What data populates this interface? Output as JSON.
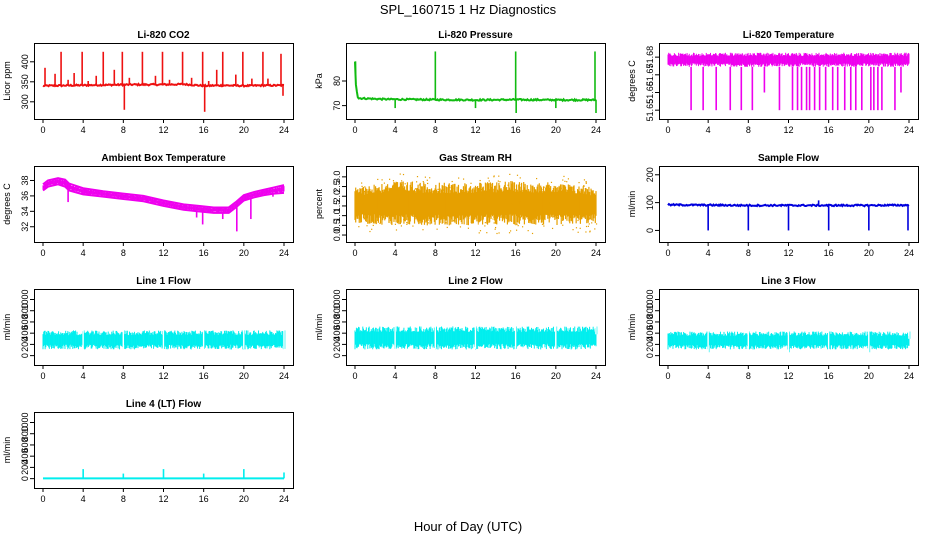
{
  "figure": {
    "title": "SPL_160715  1 Hz Diagnostics",
    "xlabel": "Hour of Day (UTC)"
  },
  "colors": {
    "red": "#ee1111",
    "green": "#11bb11",
    "magenta": "#ee00ee",
    "orange": "#e6a000",
    "blue": "#0000dd",
    "cyan": "#00eeee"
  },
  "chart_data": [
    {
      "id": "co2",
      "type": "line",
      "title": "Li-820 CO2",
      "ylabel": "Licor ppm",
      "color": "red",
      "xlim": [
        0,
        24
      ],
      "ylim": [
        272,
        432
      ],
      "xticks": [
        "0",
        "4",
        "8",
        "12",
        "16",
        "20",
        "24"
      ],
      "yticks": [
        "300",
        "350",
        "400"
      ],
      "baseline": [
        [
          0,
          340
        ],
        [
          3,
          341
        ],
        [
          6,
          342
        ],
        [
          9,
          343
        ],
        [
          12,
          343
        ],
        [
          14,
          344
        ],
        [
          16,
          340
        ],
        [
          18,
          341
        ],
        [
          20,
          340
        ],
        [
          22,
          341
        ],
        [
          24,
          341
        ]
      ],
      "spikes": [
        {
          "x": 0.2,
          "y": 385
        },
        {
          "x": 1.2,
          "y": 370
        },
        {
          "x": 1.8,
          "y": 425
        },
        {
          "x": 2.5,
          "y": 355
        },
        {
          "x": 3.1,
          "y": 372
        },
        {
          "x": 3.9,
          "y": 425
        },
        {
          "x": 4.5,
          "y": 352
        },
        {
          "x": 5.3,
          "y": 365
        },
        {
          "x": 6.0,
          "y": 425
        },
        {
          "x": 7.1,
          "y": 380
        },
        {
          "x": 7.9,
          "y": 425
        },
        {
          "x": 8.1,
          "y": 280
        },
        {
          "x": 8.6,
          "y": 360
        },
        {
          "x": 9.9,
          "y": 425
        },
        {
          "x": 11.2,
          "y": 365
        },
        {
          "x": 11.9,
          "y": 425
        },
        {
          "x": 12.6,
          "y": 355
        },
        {
          "x": 13.9,
          "y": 425
        },
        {
          "x": 14.8,
          "y": 360
        },
        {
          "x": 15.9,
          "y": 425
        },
        {
          "x": 16.1,
          "y": 275
        },
        {
          "x": 16.5,
          "y": 352
        },
        {
          "x": 17.3,
          "y": 380
        },
        {
          "x": 17.9,
          "y": 425
        },
        {
          "x": 19.2,
          "y": 368
        },
        {
          "x": 19.9,
          "y": 425
        },
        {
          "x": 20.8,
          "y": 358
        },
        {
          "x": 21.9,
          "y": 425
        },
        {
          "x": 22.4,
          "y": 358
        },
        {
          "x": 23.7,
          "y": 420
        },
        {
          "x": 23.9,
          "y": 315
        }
      ]
    },
    {
      "id": "pressure",
      "type": "line",
      "title": "Li-820 Pressure",
      "ylabel": "kPa",
      "color": "green",
      "xlim": [
        0,
        24
      ],
      "ylim": [
        67,
        93
      ],
      "xticks": [
        "0",
        "4",
        "8",
        "12",
        "16",
        "20",
        "24"
      ],
      "yticks": [
        "70",
        "80"
      ],
      "baseline": [
        [
          0,
          88
        ],
        [
          0.1,
          78
        ],
        [
          0.3,
          73
        ],
        [
          3,
          72.6
        ],
        [
          8,
          72.4
        ],
        [
          12,
          72.3
        ],
        [
          16,
          72.4
        ],
        [
          20,
          72.3
        ],
        [
          24,
          72.3
        ]
      ],
      "spikes": [
        {
          "x": 0.05,
          "y": 88
        },
        {
          "x": 4,
          "y": 69
        },
        {
          "x": 8,
          "y": 92
        },
        {
          "x": 12,
          "y": 69
        },
        {
          "x": 16,
          "y": 92
        },
        {
          "x": 16.05,
          "y": 67
        },
        {
          "x": 20,
          "y": 69
        },
        {
          "x": 23.9,
          "y": 92
        },
        {
          "x": 24,
          "y": 67
        }
      ]
    },
    {
      "id": "li_temp",
      "type": "band",
      "title": "Li-820 Temperature",
      "ylabel": "degrees C",
      "color": "magenta",
      "xlim": [
        0,
        24
      ],
      "ylim": [
        51.6484,
        51.6846
      ],
      "xticks": [
        "0",
        "4",
        "8",
        "12",
        "16",
        "20",
        "24"
      ],
      "yticks": [
        "51.65",
        "51.66",
        "51.67",
        "51.68"
      ],
      "band": [
        [
          0,
          51.6745,
          51.6825
        ],
        [
          24,
          51.6745,
          51.6825
        ]
      ],
      "spikes": [
        {
          "x": 2.3,
          "y": 51.65
        },
        {
          "x": 3.5,
          "y": 51.65
        },
        {
          "x": 4.8,
          "y": 51.65
        },
        {
          "x": 6.2,
          "y": 51.65
        },
        {
          "x": 7.3,
          "y": 51.65
        },
        {
          "x": 8.4,
          "y": 51.65
        },
        {
          "x": 9.6,
          "y": 51.66
        },
        {
          "x": 11.1,
          "y": 51.65
        },
        {
          "x": 12.4,
          "y": 51.65
        },
        {
          "x": 12.9,
          "y": 51.65
        },
        {
          "x": 13.3,
          "y": 51.65
        },
        {
          "x": 13.8,
          "y": 51.65
        },
        {
          "x": 14.1,
          "y": 51.65
        },
        {
          "x": 14.6,
          "y": 51.65
        },
        {
          "x": 15.1,
          "y": 51.65
        },
        {
          "x": 15.7,
          "y": 51.65
        },
        {
          "x": 16.4,
          "y": 51.65
        },
        {
          "x": 16.9,
          "y": 51.65
        },
        {
          "x": 17.6,
          "y": 51.65
        },
        {
          "x": 18.2,
          "y": 51.65
        },
        {
          "x": 18.7,
          "y": 51.65
        },
        {
          "x": 19.3,
          "y": 51.65
        },
        {
          "x": 20.2,
          "y": 51.65
        },
        {
          "x": 20.5,
          "y": 51.65
        },
        {
          "x": 20.9,
          "y": 51.65
        },
        {
          "x": 21.3,
          "y": 51.65
        },
        {
          "x": 22.6,
          "y": 51.65
        },
        {
          "x": 23.2,
          "y": 51.66
        }
      ]
    },
    {
      "id": "box_temp",
      "type": "band",
      "title": "Ambient Box Temperature",
      "ylabel": "degrees C",
      "color": "magenta",
      "xlim": [
        0,
        24
      ],
      "ylim": [
        30.8,
        39.1
      ],
      "xticks": [
        "0",
        "4",
        "8",
        "12",
        "16",
        "20",
        "24"
      ],
      "yticks": [
        "32",
        "34",
        "36",
        "38"
      ],
      "band": [
        [
          0,
          36.7,
          37.5
        ],
        [
          0.5,
          37.2,
          38
        ],
        [
          1.5,
          37.5,
          38.3
        ],
        [
          2.2,
          37.2,
          38.1
        ],
        [
          2.6,
          36.7,
          37.6
        ],
        [
          4,
          36.2,
          37
        ],
        [
          6,
          35.9,
          36.6
        ],
        [
          8,
          35.6,
          36.3
        ],
        [
          10,
          35.3,
          36
        ],
        [
          12,
          34.7,
          35.4
        ],
        [
          14,
          34.2,
          34.9
        ],
        [
          15.5,
          34,
          34.7
        ],
        [
          17,
          33.8,
          34.5
        ],
        [
          18.5,
          33.8,
          34.5
        ],
        [
          19.2,
          34.5,
          35.2
        ],
        [
          20,
          35.4,
          36.1
        ],
        [
          21,
          35.8,
          36.5
        ],
        [
          22,
          36.1,
          36.8
        ],
        [
          23,
          36.3,
          37.1
        ],
        [
          24,
          36.4,
          37.4
        ]
      ],
      "spikes": [
        {
          "x": 2.5,
          "y": 35.2
        },
        {
          "x": 15.3,
          "y": 33.2
        },
        {
          "x": 15.9,
          "y": 32.3
        },
        {
          "x": 17.9,
          "y": 33
        },
        {
          "x": 19.3,
          "y": 31.4
        },
        {
          "x": 20.7,
          "y": 33
        },
        {
          "x": 22.9,
          "y": 35.9
        }
      ]
    },
    {
      "id": "rh",
      "type": "band",
      "title": "Gas Stream RH",
      "ylabel": "percent",
      "color": "orange",
      "xlim": [
        0,
        24
      ],
      "ylim": [
        -0.05,
        3.25
      ],
      "xticks": [
        "0",
        "4",
        "8",
        "12",
        "16",
        "20",
        "24"
      ],
      "yticks": [
        "0.0",
        "0.5",
        "1.0",
        "1.5",
        "2.0",
        "2.5",
        "3.0"
      ],
      "band": [
        [
          0,
          0.6,
          2.5
        ],
        [
          4,
          0.5,
          2.8
        ],
        [
          8,
          0.5,
          2.7
        ],
        [
          12,
          0.5,
          2.7
        ],
        [
          16,
          0.5,
          2.8
        ],
        [
          20,
          0.5,
          2.7
        ],
        [
          24,
          0.6,
          2.5
        ]
      ],
      "spikes": []
    },
    {
      "id": "sample_flow",
      "type": "line",
      "title": "Sample Flow",
      "ylabel": "ml/min",
      "color": "blue",
      "xlim": [
        0,
        24
      ],
      "ylim": [
        -20,
        210
      ],
      "xticks": [
        "0",
        "4",
        "8",
        "12",
        "16",
        "20",
        "24"
      ],
      "yticks": [
        "0",
        "100",
        "200"
      ],
      "baseline": [
        [
          0,
          92
        ],
        [
          4,
          91
        ],
        [
          8,
          90
        ],
        [
          12,
          90
        ],
        [
          16,
          90
        ],
        [
          20,
          90
        ],
        [
          24,
          91
        ]
      ],
      "spikes": [
        {
          "x": 4,
          "y": 0
        },
        {
          "x": 8,
          "y": 0
        },
        {
          "x": 12,
          "y": 0
        },
        {
          "x": 15,
          "y": 108
        },
        {
          "x": 16,
          "y": 0
        },
        {
          "x": 20,
          "y": 0
        },
        {
          "x": 23.9,
          "y": 0
        }
      ]
    },
    {
      "id": "line1",
      "type": "band",
      "title": "Line 1 Flow",
      "ylabel": "ml/min",
      "color": "cyan",
      "xlim": [
        0,
        24
      ],
      "ylim": [
        -60,
        1080
      ],
      "xticks": [
        "0",
        "4",
        "8",
        "12",
        "16",
        "20",
        "24"
      ],
      "yticks": [
        "0",
        "200",
        "400",
        "600",
        "800",
        "1000"
      ],
      "band": [
        [
          0,
          110,
          450
        ],
        [
          24,
          110,
          450
        ]
      ],
      "spikes": [
        {
          "x": 4,
          "y": 120
        },
        {
          "x": 8,
          "y": 120
        },
        {
          "x": 12,
          "y": 120
        },
        {
          "x": 16,
          "y": 120
        },
        {
          "x": 20,
          "y": 120
        },
        {
          "x": 24,
          "y": 120
        }
      ]
    },
    {
      "id": "line2",
      "type": "band",
      "title": "Line 2 Flow",
      "ylabel": "ml/min",
      "color": "cyan",
      "xlim": [
        0,
        24
      ],
      "ylim": [
        -60,
        1080
      ],
      "xticks": [
        "0",
        "4",
        "8",
        "12",
        "16",
        "20",
        "24"
      ],
      "yticks": [
        "0",
        "200",
        "400",
        "600",
        "800",
        "1000"
      ],
      "band": [
        [
          0,
          110,
          520
        ],
        [
          24,
          110,
          520
        ]
      ],
      "spikes": [
        {
          "x": 4,
          "y": 120
        },
        {
          "x": 8,
          "y": 120
        },
        {
          "x": 12,
          "y": 120
        },
        {
          "x": 16,
          "y": 120
        },
        {
          "x": 20,
          "y": 120
        },
        {
          "x": 24,
          "y": 380
        }
      ]
    },
    {
      "id": "line3",
      "type": "band",
      "title": "Line 3 Flow",
      "ylabel": "ml/min",
      "color": "cyan",
      "xlim": [
        0,
        24
      ],
      "ylim": [
        -60,
        1080
      ],
      "xticks": [
        "0",
        "4",
        "8",
        "12",
        "16",
        "20",
        "24"
      ],
      "yticks": [
        "0",
        "200",
        "400",
        "600",
        "800",
        "1000"
      ],
      "band": [
        [
          0,
          110,
          430
        ],
        [
          24,
          110,
          430
        ]
      ],
      "spikes": [
        {
          "x": 4,
          "y": 60
        },
        {
          "x": 8,
          "y": 120
        },
        {
          "x": 12,
          "y": 60
        },
        {
          "x": 16,
          "y": 120
        },
        {
          "x": 20,
          "y": 60
        },
        {
          "x": 24,
          "y": 300
        }
      ]
    },
    {
      "id": "line4",
      "type": "line",
      "title": "Line 4 (LT) Flow",
      "ylabel": "ml/min",
      "color": "cyan",
      "xlim": [
        0,
        24
      ],
      "ylim": [
        -60,
        1080
      ],
      "xticks": [
        "0",
        "4",
        "8",
        "12",
        "16",
        "20",
        "24"
      ],
      "yticks": [
        "0",
        "200",
        "400",
        "600",
        "800",
        "1000"
      ],
      "baseline": [
        [
          0,
          5
        ],
        [
          24,
          5
        ]
      ],
      "spikes": [
        {
          "x": 4,
          "y": 170
        },
        {
          "x": 8,
          "y": 90
        },
        {
          "x": 12,
          "y": 170
        },
        {
          "x": 16,
          "y": 90
        },
        {
          "x": 20,
          "y": 170
        },
        {
          "x": 24,
          "y": 110
        }
      ]
    }
  ]
}
